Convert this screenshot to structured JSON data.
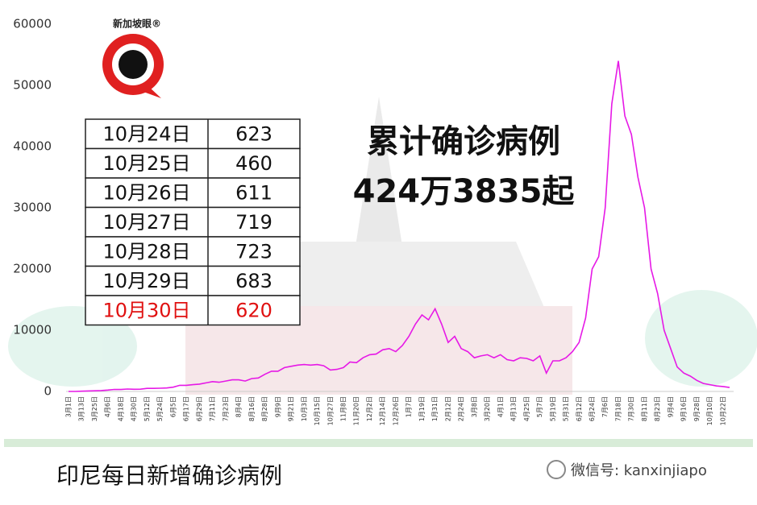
{
  "chart_data": {
    "type": "line",
    "categories": [
      "3月1日",
      null,
      "3月13日",
      null,
      "3月25日",
      null,
      "4月6日",
      null,
      "4月18日",
      null,
      "4月30日",
      null,
      "5月12日",
      null,
      "5月24日",
      null,
      "6月5日",
      null,
      "6月17日",
      null,
      "6月29日",
      null,
      "7月11日",
      null,
      "7月23日",
      null,
      "8月4日",
      null,
      "8月16日",
      null,
      "8月28日",
      null,
      "9月9日",
      null,
      "9月21日",
      null,
      "10月3日",
      null,
      "10月15日",
      null,
      "10月27日",
      null,
      "11月8日",
      null,
      "11月20日",
      null,
      "12月2日",
      null,
      "12月14日",
      null,
      "12月26日",
      null,
      "1月7日",
      null,
      "1月19日",
      null,
      "1月31日",
      null,
      "2月12日",
      null,
      "2月24日",
      null,
      "3月8日",
      null,
      "3月20日",
      null,
      "4月1日",
      null,
      "4月13日",
      null,
      "4月25日",
      null,
      "5月7日",
      null,
      "5月19日",
      null,
      "5月31日",
      null,
      "6月12日",
      null,
      "6月24日",
      null,
      "7月6日",
      null,
      "7月18日",
      null,
      "7月30日",
      null,
      "8月11日",
      null,
      "8月23日",
      null,
      "9月4日",
      null,
      "9月16日",
      null,
      "9月28日",
      null,
      "10月10日",
      null,
      "10月22日",
      null
    ],
    "values": [
      0,
      2,
      35,
      80,
      100,
      150,
      220,
      330,
      320,
      390,
      350,
      370,
      500,
      500,
      520,
      560,
      700,
      1000,
      1000,
      1100,
      1200,
      1400,
      1600,
      1500,
      1700,
      1900,
      1900,
      1700,
      2100,
      2200,
      2800,
      3300,
      3300,
      3900,
      4100,
      4300,
      4400,
      4300,
      4400,
      4200,
      3500,
      3600,
      3900,
      4800,
      4700,
      5500,
      6000,
      6100,
      6800,
      7000,
      6500,
      7500,
      9000,
      11000,
      12500,
      11700,
      13500,
      11000,
      8000,
      9000,
      7000,
      6500,
      5500,
      5800,
      6000,
      5500,
      6000,
      5200,
      5000,
      5500,
      5400,
      5000,
      5800,
      3000,
      5000,
      5000,
      5500,
      6500,
      8000,
      12000,
      20000,
      22000,
      30000,
      47000,
      54000,
      45000,
      42000,
      35000,
      30000,
      20000,
      16000,
      10000,
      7000,
      4000,
      3000,
      2500,
      1800,
      1300,
      1100,
      900,
      800,
      650
    ],
    "color": "#e619e6",
    "ylim": [
      0,
      60000
    ],
    "yticks": [
      0,
      10000,
      20000,
      30000,
      40000,
      50000,
      60000
    ],
    "grid": false
  },
  "logo_text": "新加坡眼®",
  "table": {
    "rows": [
      [
        "10月24日",
        623
      ],
      [
        "10月25日",
        460
      ],
      [
        "10月26日",
        611
      ],
      [
        "10月27日",
        719
      ],
      [
        "10月28日",
        723
      ],
      [
        "10月29日",
        683
      ],
      [
        "10月30日",
        620
      ]
    ],
    "highlight_row": 6,
    "highlight_color": "#e01010"
  },
  "headline": [
    "累计确诊病例",
    "424万3835起"
  ],
  "caption": "印尼每日新增确诊病例",
  "watermark": "微信号: kanxinjiapo"
}
